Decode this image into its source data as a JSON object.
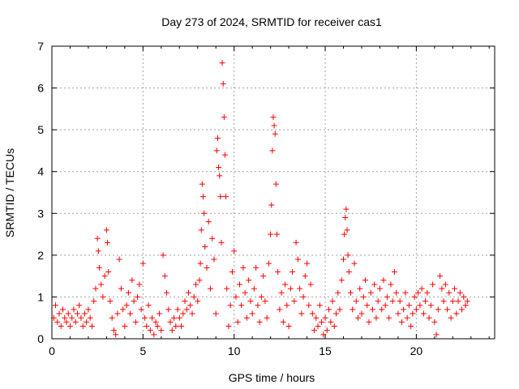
{
  "chart_data": {
    "type": "scatter",
    "title": "Day 273 of 2024, SRMTID for receiver cas1",
    "xlabel": "GPS time / hours",
    "ylabel": "SRMTID / TECUs",
    "xlim": [
      0,
      24.3
    ],
    "ylim": [
      0,
      7
    ],
    "x_ticks": [
      0,
      5,
      10,
      15,
      20
    ],
    "y_ticks": [
      0,
      1,
      2,
      3,
      4,
      5,
      6,
      7
    ],
    "grid": true,
    "marker": "+",
    "color": "#ff0000",
    "series": [
      {
        "name": "cas1",
        "points": [
          [
            0.1,
            0.5
          ],
          [
            0.2,
            0.8
          ],
          [
            0.3,
            0.4
          ],
          [
            0.4,
            0.6
          ],
          [
            0.5,
            0.3
          ],
          [
            0.6,
            0.7
          ],
          [
            0.7,
            0.5
          ],
          [
            0.8,
            0.4
          ],
          [
            0.9,
            0.6
          ],
          [
            1.0,
            0.3
          ],
          [
            1.1,
            0.5
          ],
          [
            1.2,
            0.7
          ],
          [
            1.3,
            0.4
          ],
          [
            1.4,
            0.6
          ],
          [
            1.5,
            0.8
          ],
          [
            1.6,
            0.5
          ],
          [
            1.7,
            0.3
          ],
          [
            1.8,
            0.6
          ],
          [
            1.9,
            0.4
          ],
          [
            2.0,
            0.7
          ],
          [
            2.1,
            0.5
          ],
          [
            2.2,
            0.3
          ],
          [
            2.3,
            0.9
          ],
          [
            2.4,
            1.2
          ],
          [
            2.5,
            2.4
          ],
          [
            2.55,
            2.1
          ],
          [
            2.6,
            1.7
          ],
          [
            2.7,
            1.3
          ],
          [
            2.8,
            1.0
          ],
          [
            2.9,
            1.5
          ],
          [
            3.0,
            2.6
          ],
          [
            3.05,
            2.3
          ],
          [
            3.1,
            1.6
          ],
          [
            3.2,
            0.9
          ],
          [
            3.3,
            0.5
          ],
          [
            3.4,
            0.2
          ],
          [
            3.5,
            0.1
          ],
          [
            3.6,
            0.6
          ],
          [
            3.7,
            1.9
          ],
          [
            3.8,
            1.2
          ],
          [
            3.9,
            0.7
          ],
          [
            4.0,
            0.3
          ],
          [
            4.1,
            0.8
          ],
          [
            4.2,
            1.1
          ],
          [
            4.3,
            0.6
          ],
          [
            4.4,
            1.4
          ],
          [
            4.5,
            0.9
          ],
          [
            4.6,
            0.4
          ],
          [
            4.7,
            1.0
          ],
          [
            4.8,
            1.3
          ],
          [
            4.9,
            0.7
          ],
          [
            5.0,
            1.8
          ],
          [
            5.1,
            0.5
          ],
          [
            5.2,
            0.3
          ],
          [
            5.3,
            0.8
          ],
          [
            5.4,
            0.2
          ],
          [
            5.5,
            0.5
          ],
          [
            5.6,
            0.1
          ],
          [
            5.7,
            0.4
          ],
          [
            5.8,
            0.3
          ],
          [
            5.9,
            0.6
          ],
          [
            6.0,
            0.2
          ],
          [
            6.1,
            2.0
          ],
          [
            6.2,
            1.5
          ],
          [
            6.3,
            1.1
          ],
          [
            6.4,
            0.7
          ],
          [
            6.5,
            0.4
          ],
          [
            6.6,
            0.2
          ],
          [
            6.7,
            0.5
          ],
          [
            6.8,
            0.3
          ],
          [
            6.9,
            0.7
          ],
          [
            7.0,
            0.5
          ],
          [
            7.1,
            0.3
          ],
          [
            7.2,
            0.6
          ],
          [
            7.3,
            0.9
          ],
          [
            7.4,
            0.7
          ],
          [
            7.5,
            1.1
          ],
          [
            7.6,
            0.8
          ],
          [
            7.7,
            0.6
          ],
          [
            7.8,
            1.0
          ],
          [
            7.9,
            1.3
          ],
          [
            8.0,
            0.9
          ],
          [
            8.1,
            1.4
          ],
          [
            8.15,
            1.8
          ],
          [
            8.2,
            2.6
          ],
          [
            8.25,
            3.7
          ],
          [
            8.3,
            3.4
          ],
          [
            8.35,
            3.0
          ],
          [
            8.4,
            2.2
          ],
          [
            8.5,
            1.7
          ],
          [
            8.6,
            2.8
          ],
          [
            8.7,
            1.2
          ],
          [
            8.8,
            2.4
          ],
          [
            8.9,
            1.9
          ],
          [
            9.0,
            0.6
          ],
          [
            9.05,
            4.5
          ],
          [
            9.1,
            4.8
          ],
          [
            9.15,
            4.1
          ],
          [
            9.2,
            3.9
          ],
          [
            9.25,
            3.4
          ],
          [
            9.3,
            2.3
          ],
          [
            9.35,
            6.6
          ],
          [
            9.4,
            6.1
          ],
          [
            9.45,
            5.3
          ],
          [
            9.5,
            4.4
          ],
          [
            9.55,
            3.4
          ],
          [
            9.6,
            1.2
          ],
          [
            9.7,
            0.3
          ],
          [
            9.8,
            0.8
          ],
          [
            9.9,
            1.6
          ],
          [
            10.0,
            2.1
          ],
          [
            10.1,
            1.0
          ],
          [
            10.2,
            0.4
          ],
          [
            10.3,
            1.3
          ],
          [
            10.4,
            0.8
          ],
          [
            10.5,
            1.7
          ],
          [
            10.6,
            1.1
          ],
          [
            10.7,
            0.5
          ],
          [
            10.8,
            1.4
          ],
          [
            10.9,
            0.9
          ],
          [
            11.0,
            0.6
          ],
          [
            11.1,
            1.2
          ],
          [
            11.2,
            1.7
          ],
          [
            11.3,
            0.8
          ],
          [
            11.4,
            0.4
          ],
          [
            11.5,
            1.0
          ],
          [
            11.6,
            1.5
          ],
          [
            11.7,
            0.9
          ],
          [
            11.8,
            0.5
          ],
          [
            11.9,
            1.8
          ],
          [
            12.0,
            2.5
          ],
          [
            12.05,
            3.2
          ],
          [
            12.1,
            4.5
          ],
          [
            12.15,
            5.3
          ],
          [
            12.2,
            5.1
          ],
          [
            12.25,
            4.9
          ],
          [
            12.3,
            3.7
          ],
          [
            12.35,
            2.5
          ],
          [
            12.4,
            1.6
          ],
          [
            12.5,
            0.7
          ],
          [
            12.6,
            1.1
          ],
          [
            12.7,
            0.4
          ],
          [
            12.8,
            1.3
          ],
          [
            12.9,
            0.8
          ],
          [
            13.0,
            0.3
          ],
          [
            13.1,
            1.2
          ],
          [
            13.2,
            1.6
          ],
          [
            13.3,
            0.9
          ],
          [
            13.4,
            2.3
          ],
          [
            13.5,
            1.9
          ],
          [
            13.6,
            1.2
          ],
          [
            13.7,
            0.6
          ],
          [
            13.8,
            1.0
          ],
          [
            13.9,
            1.5
          ],
          [
            14.0,
            1.8
          ],
          [
            14.1,
            0.8
          ],
          [
            14.2,
            1.3
          ],
          [
            14.3,
            0.6
          ],
          [
            14.4,
            0.2
          ],
          [
            14.5,
            0.5
          ],
          [
            14.6,
            0.3
          ],
          [
            14.7,
            0.8
          ],
          [
            14.8,
            0.4
          ],
          [
            14.9,
            0.1
          ],
          [
            15.0,
            0.5
          ],
          [
            15.1,
            0.2
          ],
          [
            15.2,
            0.7
          ],
          [
            15.3,
            0.4
          ],
          [
            15.4,
            0.9
          ],
          [
            15.5,
            0.3
          ],
          [
            15.6,
            0.6
          ],
          [
            15.7,
            1.1
          ],
          [
            15.8,
            0.7
          ],
          [
            15.9,
            1.4
          ],
          [
            16.0,
            1.9
          ],
          [
            16.05,
            2.5
          ],
          [
            16.1,
            2.9
          ],
          [
            16.15,
            3.1
          ],
          [
            16.2,
            2.6
          ],
          [
            16.25,
            2.0
          ],
          [
            16.3,
            1.6
          ],
          [
            16.4,
            1.1
          ],
          [
            16.5,
            0.7
          ],
          [
            16.6,
            1.8
          ],
          [
            16.7,
            0.9
          ],
          [
            16.8,
            0.5
          ],
          [
            16.9,
            1.2
          ],
          [
            17.0,
            0.6
          ],
          [
            17.1,
            1.0
          ],
          [
            17.2,
            1.4
          ],
          [
            17.3,
            0.8
          ],
          [
            17.4,
            0.4
          ],
          [
            17.5,
            1.1
          ],
          [
            17.6,
            0.7
          ],
          [
            17.7,
            1.3
          ],
          [
            17.8,
            0.5
          ],
          [
            17.9,
            0.9
          ],
          [
            18.0,
            1.2
          ],
          [
            18.1,
            0.7
          ],
          [
            18.2,
            1.4
          ],
          [
            18.3,
            0.8
          ],
          [
            18.4,
            1.0
          ],
          [
            18.5,
            0.5
          ],
          [
            18.6,
            1.3
          ],
          [
            18.7,
            0.9
          ],
          [
            18.8,
            1.6
          ],
          [
            18.9,
            1.1
          ],
          [
            19.0,
            0.6
          ],
          [
            19.1,
            0.9
          ],
          [
            19.2,
            0.4
          ],
          [
            19.3,
            0.7
          ],
          [
            19.4,
            1.1
          ],
          [
            19.5,
            0.5
          ],
          [
            19.6,
            0.8
          ],
          [
            19.7,
            0.3
          ],
          [
            19.8,
            0.6
          ],
          [
            19.9,
            1.0
          ],
          [
            20.0,
            0.7
          ],
          [
            20.1,
            1.1
          ],
          [
            20.2,
            0.8
          ],
          [
            20.3,
            1.2
          ],
          [
            20.4,
            0.6
          ],
          [
            20.5,
            0.9
          ],
          [
            20.6,
            1.1
          ],
          [
            20.7,
            0.5
          ],
          [
            20.8,
            0.8
          ],
          [
            20.9,
            1.3
          ],
          [
            21.0,
            0.4
          ],
          [
            21.1,
            0.1
          ],
          [
            21.2,
            0.7
          ],
          [
            21.3,
            1.5
          ],
          [
            21.4,
            1.2
          ],
          [
            21.5,
            0.9
          ],
          [
            21.6,
            1.3
          ],
          [
            21.7,
            0.7
          ],
          [
            21.8,
            1.1
          ],
          [
            21.9,
            0.5
          ],
          [
            22.0,
            0.9
          ],
          [
            22.1,
            1.2
          ],
          [
            22.2,
            0.6
          ],
          [
            22.3,
            0.9
          ],
          [
            22.4,
            1.1
          ],
          [
            22.5,
            0.7
          ],
          [
            22.6,
            1.0
          ],
          [
            22.7,
            0.8
          ],
          [
            22.8,
            0.9
          ]
        ]
      }
    ]
  }
}
